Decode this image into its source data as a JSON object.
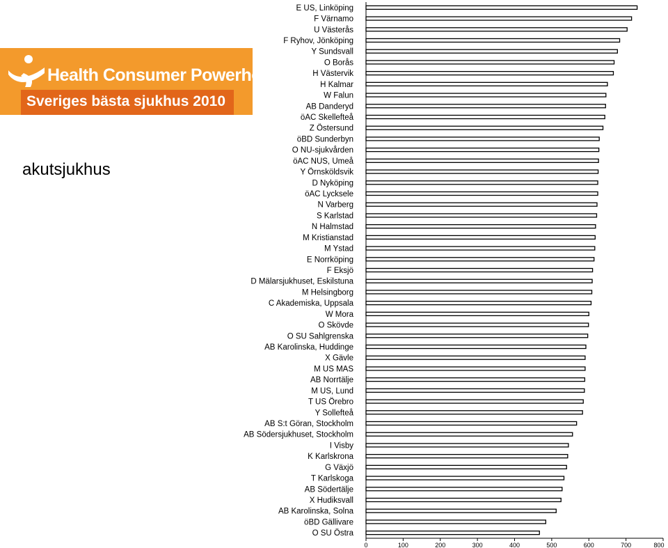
{
  "logo": {
    "name": "Health Consumer Powerhouse",
    "tagline": "Sveriges bästa sjukhus 2010"
  },
  "category_label": "akutsjukhus",
  "colors": {
    "bar_fill": "#ffffff",
    "bar_stroke": "#000000",
    "logo_orange": "#f39a2c",
    "logo_band": "#e2661a"
  },
  "chart_data": {
    "type": "bar",
    "orientation": "horizontal",
    "categories": [
      "E US, Linköping",
      "F Värnamo",
      "U Västerås",
      "F Ryhov, Jönköping",
      "Y Sundsvall",
      "O Borås",
      "H Västervik",
      "H Kalmar",
      "W Falun",
      "AB Danderyd",
      "öAC Skellefteå",
      "Z Östersund",
      "öBD Sunderbyn",
      "O NU-sjukvården",
      "öAC NUS, Umeå",
      "Y Örnsköldsvik",
      "D Nyköping",
      "öAC Lycksele",
      "N Varberg",
      "S Karlstad",
      "N Halmstad",
      "M Kristianstad",
      "M Ystad",
      "E Norrköping",
      "F Eksjö",
      "D Mälarsjukhuset, Eskilstuna",
      "M Helsingborg",
      "C Akademiska, Uppsala",
      "W Mora",
      "O Skövde",
      "O SU Sahlgrenska",
      "AB Karolinska, Huddinge",
      "X Gävle",
      "M US MAS",
      "AB Norrtälje",
      "M US, Lund",
      "T US Örebro",
      "Y Sollefteå",
      "AB S:t Göran, Stockholm",
      "AB Södersjukhuset, Stockholm",
      "I Visby",
      "K Karlskrona",
      "G Växjö",
      "T Karlskoga",
      "AB Södertälje",
      "X Hudiksvall",
      "AB Karolinska, Solna",
      "öBD Gällivare",
      "O SU Östra"
    ],
    "values": [
      730,
      715,
      703,
      683,
      677,
      668,
      666,
      650,
      646,
      645,
      643,
      638,
      628,
      627,
      626,
      625,
      624,
      624,
      622,
      621,
      618,
      617,
      616,
      614,
      610,
      609,
      608,
      606,
      600,
      599,
      597,
      592,
      590,
      590,
      589,
      588,
      585,
      583,
      567,
      556,
      545,
      543,
      540,
      533,
      528,
      525,
      512,
      484,
      467
    ],
    "xlim": [
      0,
      800
    ],
    "xticks": [
      0,
      100,
      200,
      300,
      400,
      500,
      600,
      700,
      800
    ],
    "title": "",
    "xlabel": "",
    "ylabel": "",
    "grid": false,
    "legend": "none"
  }
}
